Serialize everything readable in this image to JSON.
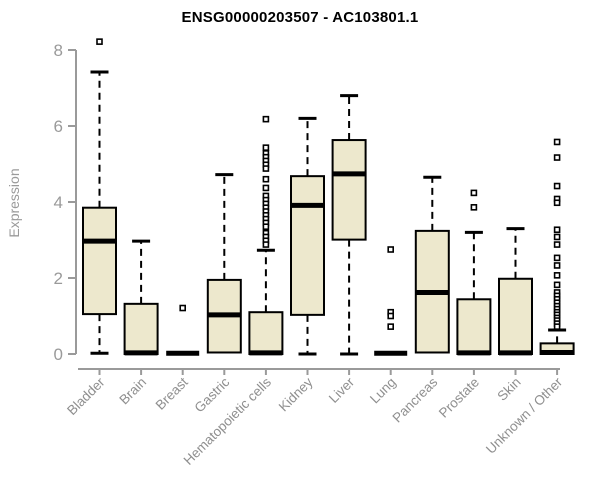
{
  "title": "ENSG00000203507 - AC103801.1",
  "ylabel": "Expression",
  "colors": {
    "box_fill": "#ede8cd",
    "box_stroke": "#000000",
    "median": "#000000",
    "whisker": "#000000",
    "outlier_stroke": "#000000",
    "axis": "#9a9a9a",
    "tick_label": "#9a9a9a",
    "category_label": "#8f8f8f",
    "title": "#000000",
    "background": "#ffffff"
  },
  "chart_data": {
    "type": "box",
    "title": "ENSG00000203507 - AC103801.1",
    "xlabel": "",
    "ylabel": "Expression",
    "ylim": [
      0,
      8
    ],
    "yticks": [
      0,
      2,
      4,
      6,
      8
    ],
    "grid": false,
    "legend": "none",
    "categories": [
      "Bladder",
      "Brain",
      "Breast",
      "Gastric",
      "Hematopoietic cells",
      "Kidney",
      "Liver",
      "Lung",
      "Pancreas",
      "Prostate",
      "Skin",
      "Unknown / Other"
    ],
    "series": [
      {
        "name": "Bladder",
        "whisker_low": 0.02,
        "q1": 1.05,
        "median": 2.97,
        "q3": 3.85,
        "whisker_high": 7.42,
        "outliers": [
          8.22
        ]
      },
      {
        "name": "Brain",
        "whisker_low": 0,
        "q1": 0,
        "median": 0.03,
        "q3": 1.32,
        "whisker_high": 2.97,
        "outliers": []
      },
      {
        "name": "Breast",
        "whisker_low": 0,
        "q1": 0,
        "median": 0.02,
        "q3": 0.04,
        "whisker_high": 0.04,
        "outliers": [
          1.21
        ]
      },
      {
        "name": "Gastric",
        "whisker_low": 0,
        "q1": 0.04,
        "median": 1.03,
        "q3": 1.95,
        "whisker_high": 4.72,
        "outliers": []
      },
      {
        "name": "Hematopoietic cells",
        "whisker_low": 0,
        "q1": 0,
        "median": 0.03,
        "q3": 1.1,
        "whisker_high": 2.73,
        "outliers": [
          6.18,
          5.43,
          5.28,
          5.18,
          5.08,
          4.98,
          4.88,
          4.6,
          4.37,
          4.16,
          4.05,
          3.95,
          3.85,
          3.75,
          3.65,
          3.55,
          3.45,
          3.35,
          3.18,
          3.08,
          2.98,
          2.88
        ]
      },
      {
        "name": "Kidney",
        "whisker_low": 0,
        "q1": 1.03,
        "median": 3.91,
        "q3": 4.68,
        "whisker_high": 6.2,
        "outliers": []
      },
      {
        "name": "Liver",
        "whisker_low": 0,
        "q1": 3.01,
        "median": 4.74,
        "q3": 5.63,
        "whisker_high": 6.8,
        "outliers": []
      },
      {
        "name": "Lung",
        "whisker_low": 0,
        "q1": 0,
        "median": 0.02,
        "q3": 0.04,
        "whisker_high": 0.04,
        "outliers": [
          2.75,
          1.1,
          1.0,
          0.72
        ]
      },
      {
        "name": "Pancreas",
        "whisker_low": 0,
        "q1": 0.04,
        "median": 1.62,
        "q3": 3.24,
        "whisker_high": 4.65,
        "outliers": []
      },
      {
        "name": "Prostate",
        "whisker_low": 0,
        "q1": 0,
        "median": 0.03,
        "q3": 1.44,
        "whisker_high": 3.2,
        "outliers": [
          4.24,
          3.86
        ]
      },
      {
        "name": "Skin",
        "whisker_low": 0,
        "q1": 0,
        "median": 0.03,
        "q3": 1.98,
        "whisker_high": 3.3,
        "outliers": []
      },
      {
        "name": "Unknown / Other",
        "whisker_low": 0,
        "q1": 0,
        "median": 0.04,
        "q3": 0.28,
        "whisker_high": 0.63,
        "outliers": [
          5.58,
          5.17,
          4.42,
          4.08,
          3.98,
          3.27,
          3.08,
          2.88,
          2.53,
          2.33,
          2.07,
          1.82,
          1.62,
          1.53,
          1.44,
          1.35,
          1.26,
          1.18,
          1.1,
          1.03,
          0.95,
          0.88,
          0.8,
          0.72
        ]
      }
    ]
  }
}
